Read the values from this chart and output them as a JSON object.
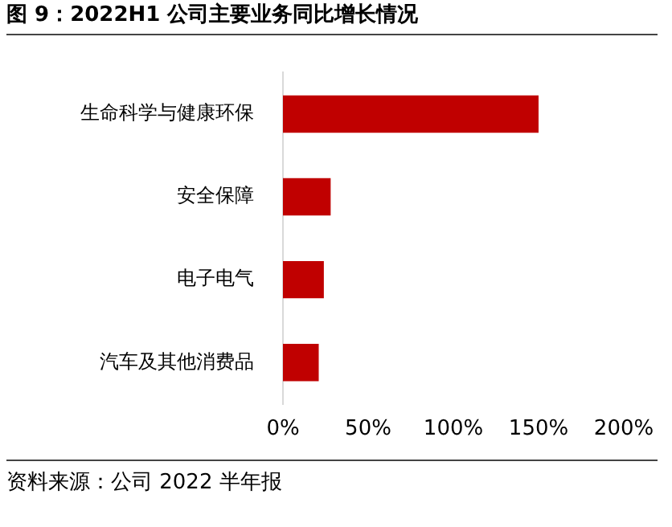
{
  "chart_data": {
    "type": "bar",
    "orientation": "horizontal",
    "title": "图 9：2022H1 公司主要业务同比增长情况",
    "categories": [
      "生命科学与健康环保",
      "安全保障",
      "电子电气",
      "汽车及其他消费品"
    ],
    "values": [
      150,
      28,
      24,
      21
    ],
    "color": "#c00000",
    "xlim": [
      0,
      200
    ],
    "xticks": [
      {
        "value": 0,
        "label": "0%"
      },
      {
        "value": 50,
        "label": "50%"
      },
      {
        "value": 100,
        "label": "100%"
      },
      {
        "value": 150,
        "label": "150%"
      },
      {
        "value": 200,
        "label": "200%"
      }
    ],
    "grid": false,
    "legend": false,
    "annotations": [
      "资料来源：公司 2022 半年报"
    ]
  }
}
